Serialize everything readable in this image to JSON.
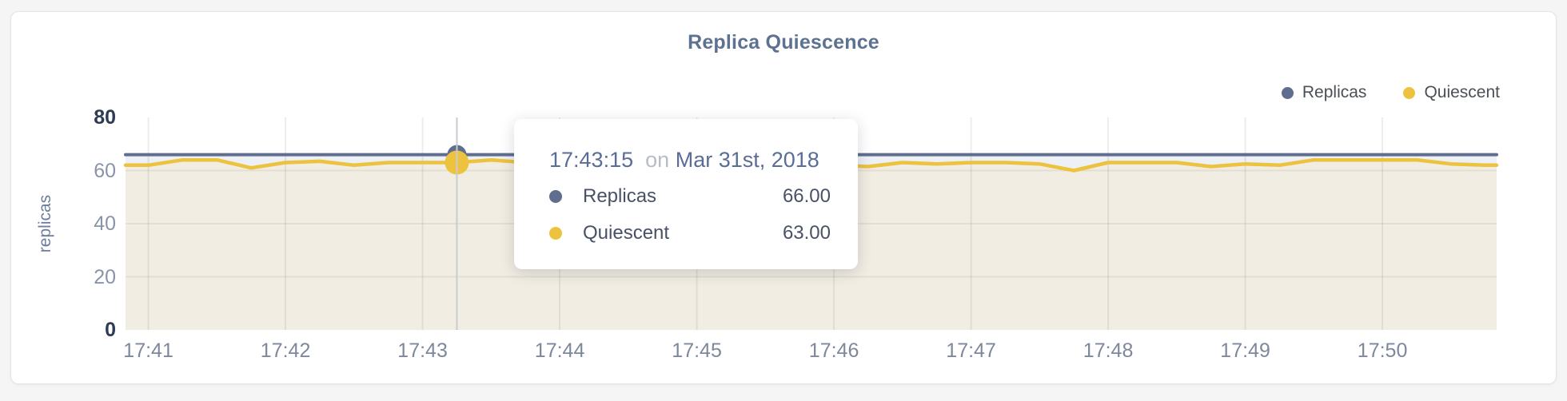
{
  "window": {
    "page_background": "#f5f5f6",
    "card_background": "#ffffff"
  },
  "chart": {
    "title": "Replica Quiescence",
    "y_axis_label": "replicas",
    "legend": [
      {
        "label": "Replicas",
        "color": "#5f6e8e"
      },
      {
        "label": "Quiescent",
        "color": "#ecc23f"
      }
    ]
  },
  "tooltip": {
    "time": "17:43:15",
    "connector": "on",
    "date": "Mar 31st, 2018",
    "rows": [
      {
        "label": "Replicas",
        "value": "66.00",
        "color": "#5f6e8e"
      },
      {
        "label": "Quiescent",
        "value": "63.00",
        "color": "#ecc23f"
      }
    ]
  },
  "chart_data": {
    "type": "area",
    "title": "Replica Quiescence",
    "xlabel": "",
    "ylabel": "replicas",
    "ylim": [
      0,
      80
    ],
    "xlim": [
      "17:40:50",
      "17:50:50"
    ],
    "grid": true,
    "legend_position": "top-right",
    "y_ticks": [
      {
        "value": 80,
        "emphasis": true
      },
      {
        "value": 60,
        "emphasis": false
      },
      {
        "value": 40,
        "emphasis": false
      },
      {
        "value": 20,
        "emphasis": false
      },
      {
        "value": 0,
        "emphasis": true
      }
    ],
    "x_ticks": [
      "17:41",
      "17:42",
      "17:43",
      "17:44",
      "17:45",
      "17:46",
      "17:47",
      "17:48",
      "17:49",
      "17:50"
    ],
    "x": [
      "17:40:50",
      "17:41:00",
      "17:41:15",
      "17:41:30",
      "17:41:45",
      "17:42:00",
      "17:42:15",
      "17:42:30",
      "17:42:45",
      "17:43:00",
      "17:43:15",
      "17:43:30",
      "17:43:45",
      "17:44:00",
      "17:44:15",
      "17:44:30",
      "17:44:45",
      "17:45:00",
      "17:45:15",
      "17:45:30",
      "17:45:45",
      "17:46:00",
      "17:46:15",
      "17:46:30",
      "17:46:45",
      "17:47:00",
      "17:47:15",
      "17:47:30",
      "17:47:45",
      "17:48:00",
      "17:48:15",
      "17:48:30",
      "17:48:45",
      "17:49:00",
      "17:49:15",
      "17:49:30",
      "17:49:45",
      "17:50:00",
      "17:50:15",
      "17:50:30",
      "17:50:45",
      "17:50:50"
    ],
    "series": [
      {
        "name": "Replicas",
        "color": "#5f6e8e",
        "fill": "#edf0f5",
        "line_width": 4,
        "values": [
          66,
          66,
          66,
          66,
          66,
          66,
          66,
          66,
          66,
          66,
          66,
          66,
          66,
          66,
          66,
          66,
          66,
          66,
          66,
          66,
          66,
          66,
          66,
          66,
          66,
          66,
          66,
          66,
          66,
          66,
          66,
          66,
          66,
          66,
          66,
          66,
          66,
          66,
          66,
          66,
          66,
          66
        ]
      },
      {
        "name": "Quiescent",
        "color": "#ecc23f",
        "fill": "#f1ede2",
        "line_width": 4.5,
        "values": [
          62,
          62,
          64,
          64,
          61,
          63,
          63.5,
          62,
          63,
          63,
          63,
          64,
          63,
          63.5,
          62.5,
          63,
          63,
          62.5,
          63,
          63.5,
          62.5,
          62,
          61.5,
          63,
          62.5,
          63,
          63,
          62.5,
          60,
          63,
          63,
          63,
          61.5,
          62.5,
          62,
          64,
          64,
          64,
          64,
          62.5,
          62,
          62
        ]
      }
    ],
    "highlight": {
      "time": "17:43:15",
      "crosshair_color": "#c9cbd1",
      "values": {
        "Replicas": 66,
        "Quiescent": 63
      }
    }
  }
}
